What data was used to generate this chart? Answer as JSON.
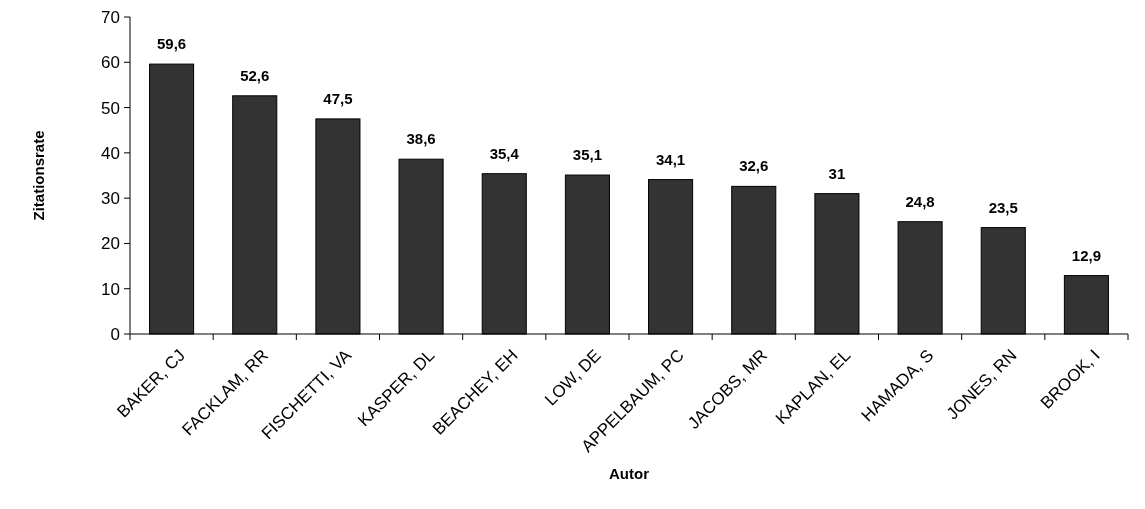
{
  "chart_data": {
    "type": "bar",
    "xlabel": "Autor",
    "ylabel": "Zitationsrate",
    "categories": [
      "BAKER, CJ",
      "FACKLAM, RR",
      "FISCHETTI, VA",
      "KASPER, DL",
      "BEACHEY, EH",
      "LOW, DE",
      "APPELBAUM, PC",
      "JACOBS, MR",
      "KAPLAN, EL",
      "HAMADA, S",
      "JONES, RN",
      "BROOK, I"
    ],
    "values": [
      59.6,
      52.6,
      47.5,
      38.6,
      35.4,
      35.1,
      34.1,
      32.6,
      31,
      24.8,
      23.5,
      12.9
    ],
    "value_labels": [
      "59,6",
      "52,6",
      "47,5",
      "38,6",
      "35,4",
      "35,1",
      "34,1",
      "32,6",
      "31",
      "24,8",
      "23,5",
      "12,9"
    ],
    "color": "#333333",
    "ylim": [
      0,
      70
    ],
    "yticks": [
      0,
      10,
      20,
      30,
      40,
      50,
      60,
      70
    ],
    "grid": false
  }
}
